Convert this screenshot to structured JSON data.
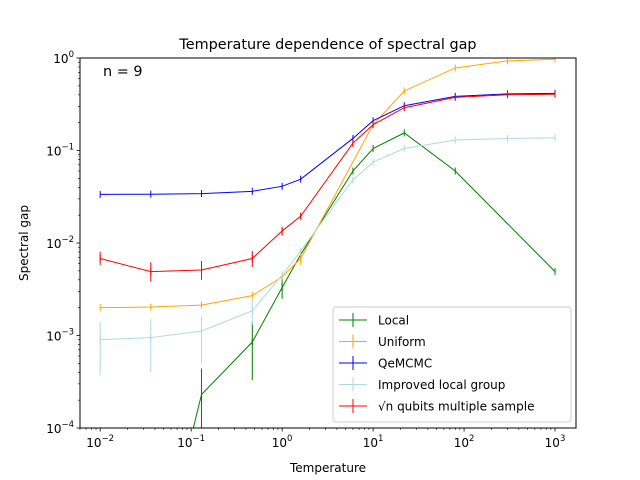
{
  "chart_data": {
    "type": "line",
    "title": "Temperature dependence of spectral gap",
    "xlabel": "Temperature",
    "ylabel": "Spectral gap",
    "annotation": "n = 9",
    "xscale": "log",
    "yscale": "log",
    "xlim": [
      0.006,
      1700
    ],
    "ylim": [
      0.0001,
      1.0
    ],
    "x_ticks": [
      {
        "value": 0.01,
        "base": "10",
        "exp": "−2"
      },
      {
        "value": 0.1,
        "base": "10",
        "exp": "−1"
      },
      {
        "value": 1,
        "base": "10",
        "exp": "0"
      },
      {
        "value": 10,
        "base": "10",
        "exp": "1"
      },
      {
        "value": 100,
        "base": "10",
        "exp": "2"
      },
      {
        "value": 1000,
        "base": "10",
        "exp": "3"
      }
    ],
    "y_ticks": [
      {
        "value": 0.0001,
        "base": "10",
        "exp": "−4"
      },
      {
        "value": 0.001,
        "base": "10",
        "exp": "−3"
      },
      {
        "value": 0.01,
        "base": "10",
        "exp": "−2"
      },
      {
        "value": 0.1,
        "base": "10",
        "exp": "−1"
      },
      {
        "value": 1,
        "base": "10",
        "exp": "0"
      }
    ],
    "grid": false,
    "legend_position": "lower-right",
    "series": [
      {
        "name": "Local",
        "color": "#008000",
        "x": [
          0.1,
          0.13,
          0.47,
          1.0,
          1.6,
          6,
          10,
          22,
          80,
          1000
        ],
        "y": [
          8e-05,
          0.00023,
          0.00085,
          0.0033,
          0.0075,
          0.06,
          0.105,
          0.155,
          0.06,
          0.0049
        ],
        "err_low": [
          null,
          9e-05,
          0.00033,
          0.0025,
          null,
          null,
          null,
          null,
          null,
          null
        ],
        "err_high": [
          null,
          0.00044,
          0.0014,
          0.0043,
          null,
          null,
          null,
          null,
          null,
          null
        ]
      },
      {
        "name": "Uniform",
        "color": "#ffa500",
        "x": [
          0.01,
          0.036,
          0.13,
          0.47,
          1.0,
          1.6,
          10,
          22,
          80,
          300,
          1000
        ],
        "y": [
          0.002,
          0.00203,
          0.00213,
          0.0027,
          0.0043,
          0.0068,
          0.19,
          0.44,
          0.78,
          0.93,
          0.97
        ],
        "err_low": [
          null,
          null,
          null,
          null,
          null,
          0.0058,
          null,
          null,
          null,
          null,
          null
        ],
        "err_high": [
          null,
          null,
          null,
          null,
          null,
          0.0078,
          null,
          null,
          null,
          null,
          null
        ]
      },
      {
        "name": "QeMCMC",
        "color": "#0000ff",
        "x": [
          0.01,
          0.036,
          0.13,
          0.47,
          1.0,
          1.6,
          6,
          10,
          22,
          80,
          300,
          1000
        ],
        "y": [
          0.0335,
          0.0337,
          0.0342,
          0.0362,
          0.041,
          0.049,
          0.135,
          0.21,
          0.305,
          0.385,
          0.41,
          0.415
        ],
        "err_low": [
          null,
          null,
          null,
          null,
          null,
          null,
          null,
          null,
          null,
          null,
          null,
          null
        ],
        "err_high": [
          null,
          null,
          null,
          null,
          null,
          null,
          null,
          null,
          null,
          null,
          null,
          null
        ]
      },
      {
        "name": "Improved local group",
        "color": "#add8e6",
        "x": [
          0.01,
          0.036,
          0.13,
          0.47,
          1.0,
          1.6,
          6,
          10,
          22,
          80,
          300,
          1000
        ],
        "y": [
          0.0009,
          0.00095,
          0.00112,
          0.00185,
          0.0045,
          0.0082,
          0.048,
          0.075,
          0.105,
          0.13,
          0.135,
          0.137
        ],
        "err_low": [
          0.00037,
          0.0004,
          0.0005,
          0.0013,
          null,
          null,
          null,
          null,
          null,
          null,
          null,
          null
        ],
        "err_high": [
          0.0014,
          0.0015,
          0.0016,
          0.0025,
          null,
          null,
          null,
          null,
          null,
          null,
          null,
          null
        ]
      },
      {
        "name": "√n qubits multiple sample",
        "color": "#ff0000",
        "x": [
          0.01,
          0.036,
          0.13,
          0.47,
          1.0,
          1.6,
          6,
          10,
          22,
          80,
          300,
          1000
        ],
        "y": [
          0.0068,
          0.0049,
          0.0051,
          0.0068,
          0.0135,
          0.0195,
          0.12,
          0.19,
          0.29,
          0.375,
          0.4,
          0.405
        ],
        "err_low": [
          0.0058,
          0.0038,
          0.004,
          0.0055,
          0.012,
          0.018,
          0.11,
          null,
          null,
          null,
          null,
          null
        ],
        "err_high": [
          0.008,
          0.0062,
          0.0064,
          0.0082,
          0.015,
          0.021,
          0.13,
          null,
          null,
          null,
          null,
          null
        ]
      }
    ]
  }
}
